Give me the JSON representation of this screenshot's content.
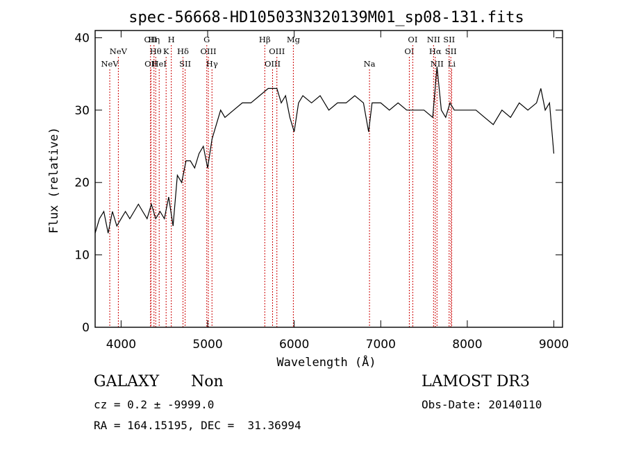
{
  "chart_data": {
    "type": "line",
    "title": "spec-56668-HD105033N320139M01_sp08-131.fits",
    "xlabel": "Wavelength (Å)",
    "ylabel": "Flux (relative)",
    "xlim": [
      3700,
      9100
    ],
    "ylim": [
      0,
      41
    ],
    "xticks": [
      4000,
      5000,
      6000,
      7000,
      8000,
      9000
    ],
    "yticks": [
      0,
      10,
      20,
      30,
      40
    ],
    "grid": false,
    "series": [
      {
        "name": "spectrum",
        "x": [
          3700,
          3750,
          3800,
          3850,
          3900,
          3950,
          4000,
          4050,
          4100,
          4150,
          4200,
          4250,
          4300,
          4350,
          4400,
          4450,
          4500,
          4550,
          4600,
          4650,
          4700,
          4750,
          4800,
          4850,
          4900,
          4950,
          5000,
          5050,
          5100,
          5150,
          5200,
          5300,
          5400,
          5500,
          5600,
          5700,
          5800,
          5850,
          5900,
          5950,
          6000,
          6050,
          6100,
          6200,
          6300,
          6400,
          6500,
          6600,
          6700,
          6800,
          6860,
          6900,
          7000,
          7100,
          7200,
          7300,
          7400,
          7500,
          7600,
          7650,
          7700,
          7750,
          7800,
          7850,
          7900,
          8000,
          8100,
          8200,
          8300,
          8400,
          8500,
          8600,
          8700,
          8800,
          8850,
          8900,
          8950,
          9000
        ],
        "y": [
          13,
          15,
          16,
          13,
          16,
          14,
          15,
          16,
          15,
          16,
          17,
          16,
          15,
          17,
          15,
          16,
          15,
          18,
          14,
          21,
          20,
          23,
          23,
          22,
          24,
          25,
          22,
          26,
          28,
          30,
          29,
          30,
          31,
          31,
          32,
          33,
          33,
          31,
          32,
          29,
          27,
          31,
          32,
          31,
          32,
          30,
          31,
          31,
          32,
          31,
          27,
          31,
          31,
          30,
          31,
          30,
          30,
          30,
          29,
          36,
          30,
          29,
          31,
          30,
          30,
          30,
          30,
          29,
          28,
          30,
          29,
          31,
          30,
          31,
          33,
          30,
          31,
          24
        ]
      }
    ],
    "lines": [
      {
        "wave": 3869,
        "label": "NeV",
        "row": 3
      },
      {
        "wave": 3968,
        "label": "NeV",
        "row": 2
      },
      {
        "wave": 4340,
        "label": "OII",
        "row": 1
      },
      {
        "wave": 4345,
        "label": "OII",
        "row": 3
      },
      {
        "wave": 4380,
        "label": "Hη",
        "row": 1
      },
      {
        "wave": 4400,
        "label": "Hθ",
        "row": 2
      },
      {
        "wave": 4440,
        "label": "HeI",
        "row": 3
      },
      {
        "wave": 4520,
        "label": "K",
        "row": 2
      },
      {
        "wave": 4580,
        "label": "H",
        "row": 1
      },
      {
        "wave": 4715,
        "label": "Hδ",
        "row": 2
      },
      {
        "wave": 4740,
        "label": "SII",
        "row": 3
      },
      {
        "wave": 4990,
        "label": "G",
        "row": 1
      },
      {
        "wave": 5008,
        "label": "OIII",
        "row": 2
      },
      {
        "wave": 5050,
        "label": "Hγ",
        "row": 3
      },
      {
        "wave": 5660,
        "label": "Hβ",
        "row": 1
      },
      {
        "wave": 5750,
        "label": "OIII",
        "row": 3
      },
      {
        "wave": 5800,
        "label": "OIII",
        "row": 2
      },
      {
        "wave": 5990,
        "label": "Mg",
        "row": 1
      },
      {
        "wave": 6870,
        "label": "Na",
        "row": 3
      },
      {
        "wave": 7330,
        "label": "OI",
        "row": 2
      },
      {
        "wave": 7370,
        "label": "OI",
        "row": 1
      },
      {
        "wave": 7610,
        "label": "NII",
        "row": 1
      },
      {
        "wave": 7630,
        "label": "Hα",
        "row": 2
      },
      {
        "wave": 7650,
        "label": "NII",
        "row": 3
      },
      {
        "wave": 7790,
        "label": "SII",
        "row": 1
      },
      {
        "wave": 7810,
        "label": "SII",
        "row": 2
      },
      {
        "wave": 7820,
        "label": "Li",
        "row": 3
      }
    ]
  },
  "info": {
    "class_label": "GALAXY",
    "subclass_label": "Non",
    "survey_label": "LAMOST DR3",
    "cz_text": "cz = 0.2 ± -9999.0",
    "obs_date_text": "Obs-Date: 20140110",
    "radec_text": "RA = 164.15195, DEC =  31.36994"
  },
  "colors": {
    "spectrum": "#000000",
    "line_marker": "#cc0000",
    "axis": "#000000"
  }
}
